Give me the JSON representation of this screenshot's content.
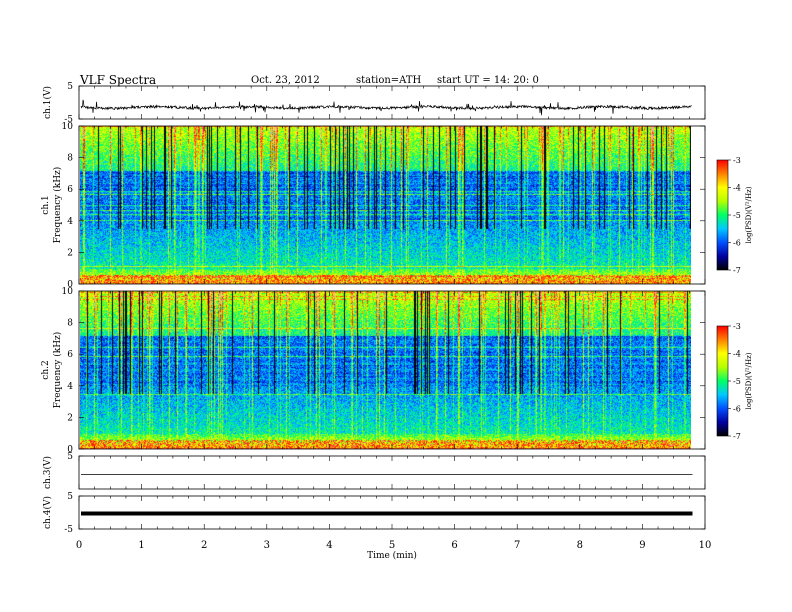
{
  "header": {
    "title": "VLF  Spectra",
    "date": "Oct. 23, 2012",
    "station": "station=ATH",
    "start": "start  UT  =    14: 20: 0"
  },
  "chart_data": [
    {
      "type": "line",
      "ylabel": "ch.1(V)",
      "ylim": [
        -5,
        5
      ],
      "y_ticks": [
        "5",
        "-5"
      ],
      "baseline": -1.5,
      "trace": "noisy black waveform with frequent spikes"
    },
    {
      "type": "heatmap",
      "ylabel": "Frequency  (kHz)",
      "channel_label": "ch.1",
      "ylim": [
        0,
        10
      ],
      "y_ticks": [
        "0",
        "2",
        "4",
        "6",
        "8",
        "10"
      ],
      "colorbar": {
        "label": "log(PSD)(V²/Hz)",
        "range": [
          -7,
          -3
        ],
        "ticks": [
          "-3",
          "-4",
          "-5",
          "-6",
          "-7"
        ]
      }
    },
    {
      "type": "heatmap",
      "ylabel": "Frequency  (kHz)",
      "channel_label": "ch.2",
      "ylim": [
        0,
        10
      ],
      "y_ticks": [
        "0",
        "2",
        "4",
        "6",
        "8",
        "10"
      ],
      "colorbar": {
        "label": "log(PSD)(V²/Hz)",
        "range": [
          -7,
          -3
        ],
        "ticks": [
          "-3",
          "-4",
          "-5",
          "-6",
          "-7"
        ]
      }
    },
    {
      "type": "line",
      "ylabel": "ch.3(V)",
      "ylim": [
        -5,
        5
      ],
      "y_ticks": [
        "5"
      ],
      "baseline": 0.0,
      "trace": "thin flat line"
    },
    {
      "type": "line",
      "ylabel": "ch.4(V)",
      "ylim": [
        -5,
        5
      ],
      "y_ticks": [
        "5",
        "-5"
      ],
      "baseline": -0.3,
      "trace": "thick flat band"
    }
  ],
  "x_axis": {
    "xlabel": "Time  (min)",
    "xlim": [
      0,
      10
    ],
    "data_end": 9.8,
    "ticks": [
      "0",
      "1",
      "2",
      "3",
      "4",
      "5",
      "6",
      "7",
      "8",
      "9",
      "10"
    ]
  },
  "colors": {
    "colormap": [
      "#000000",
      "#0000a0",
      "#0050ff",
      "#00c8ff",
      "#00ff64",
      "#b4ff00",
      "#ffff00",
      "#ff8000",
      "#ff0000",
      "#ffffff"
    ]
  }
}
